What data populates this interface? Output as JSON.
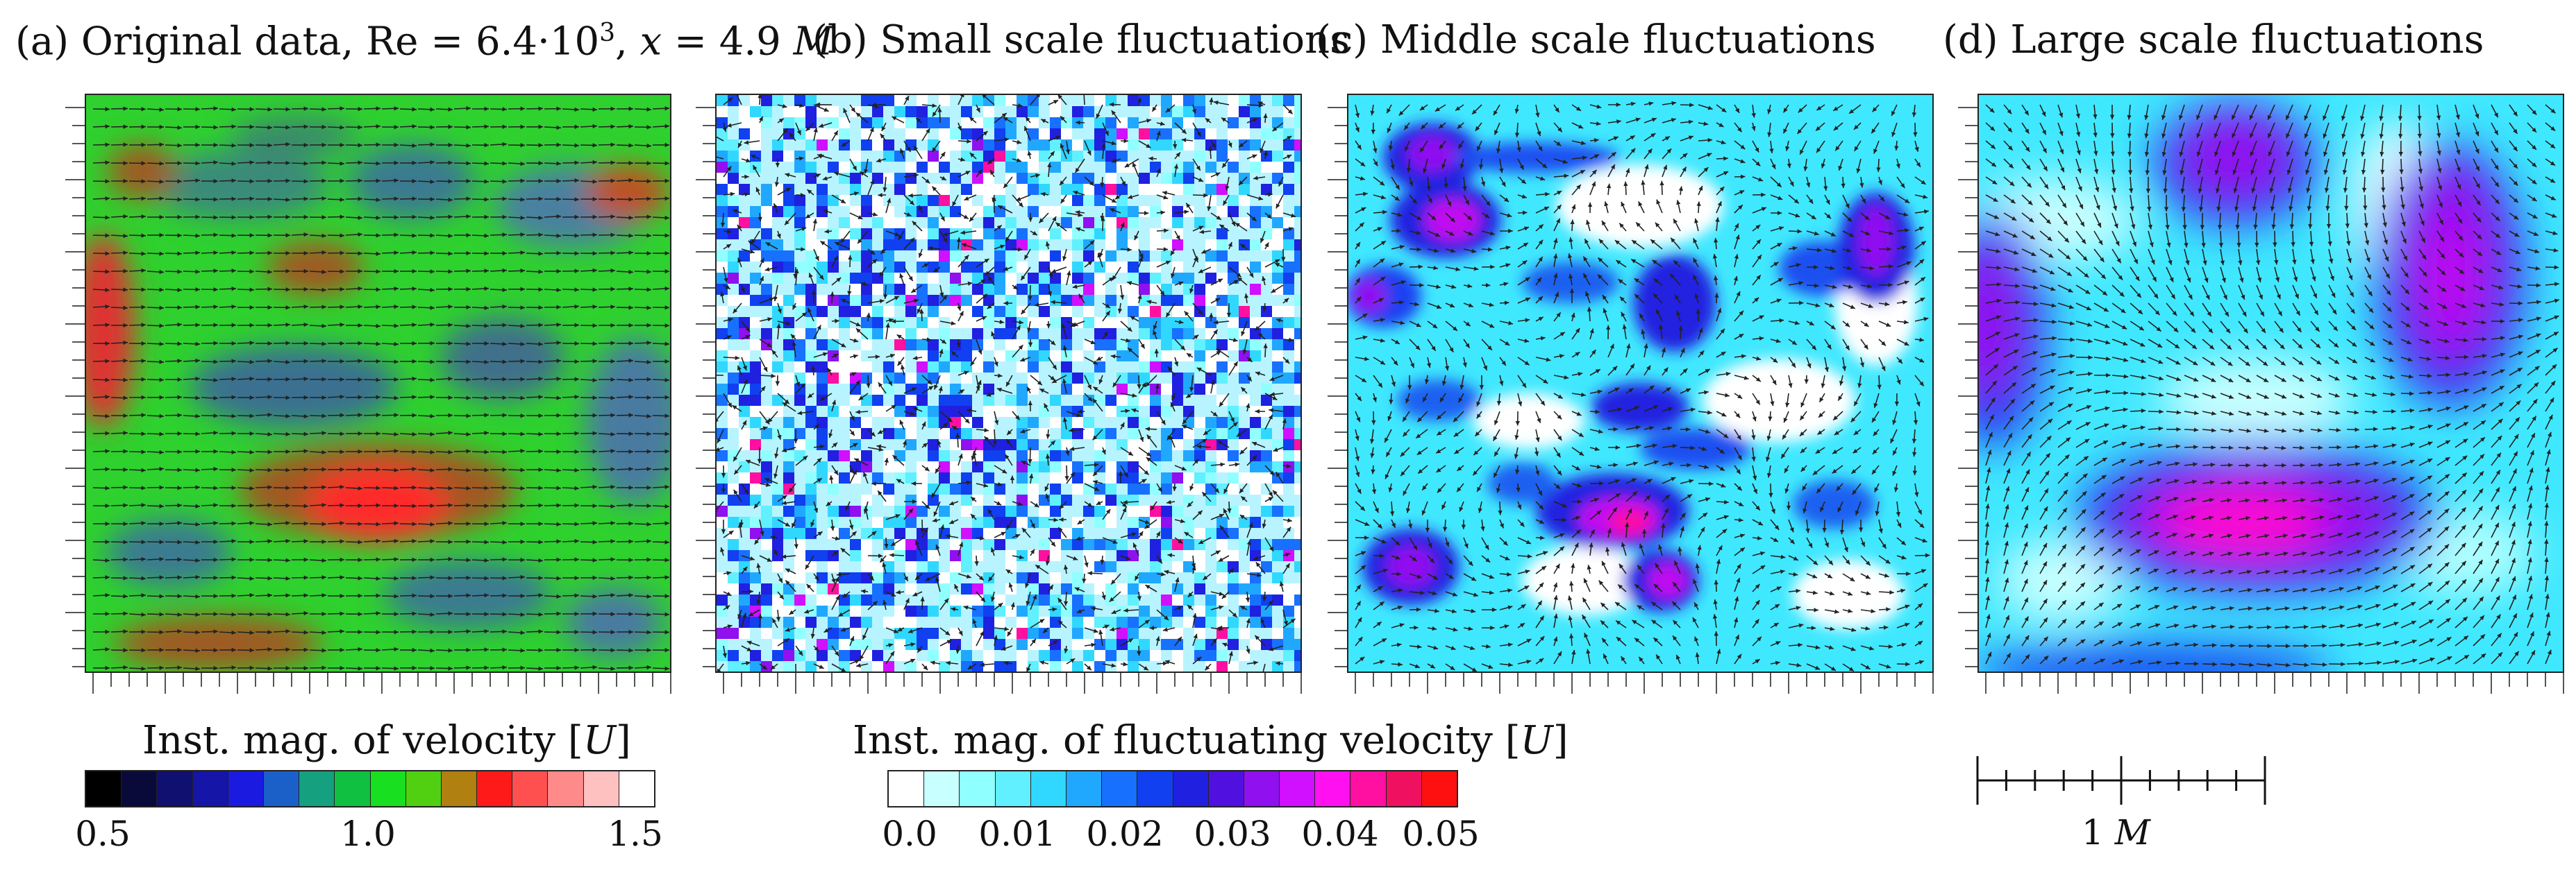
{
  "panels": [
    {
      "prefix": "(a) Original data, Re = 6.4·10",
      "sup": "3",
      "mid": ", ",
      "x_var": "x",
      "eq": " = 4.9 ",
      "unit": "M"
    },
    {
      "title": "(b) Small scale fluctuations"
    },
    {
      "title": "(c) Middle scale fluctuations"
    },
    {
      "title": "(d) Large scale fluctuations"
    }
  ],
  "colorbar_velocity": {
    "title": "Inst. mag. of velocity [",
    "unit": "U",
    "close": "]",
    "colors": [
      "#000000",
      "#0a0a3a",
      "#101070",
      "#1515a8",
      "#1a1ae0",
      "#1a60c8",
      "#15a080",
      "#10c040",
      "#18e020",
      "#50d010",
      "#b08010",
      "#ff1a1a",
      "#ff5050",
      "#ff8a8a",
      "#ffc0c0",
      "#ffffff"
    ],
    "labels": [
      "0.5",
      "1.0",
      "1.5"
    ]
  },
  "colorbar_fluct": {
    "title": "Inst. mag. of fluctuating velocity [",
    "unit": "U",
    "close": "]",
    "colors": [
      "#ffffff",
      "#c8ffff",
      "#90ffff",
      "#60f0ff",
      "#30d8ff",
      "#20a8ff",
      "#1870ff",
      "#1040f0",
      "#2020e0",
      "#5010e0",
      "#9010f0",
      "#d010ff",
      "#ff10f0",
      "#ff10a0",
      "#f01060",
      "#ff1010"
    ],
    "labels": [
      "0.0",
      "0.01",
      "0.02",
      "0.03",
      "0.04",
      "0.05"
    ]
  },
  "scale_bar": {
    "value": "1",
    "unit": "M"
  }
}
